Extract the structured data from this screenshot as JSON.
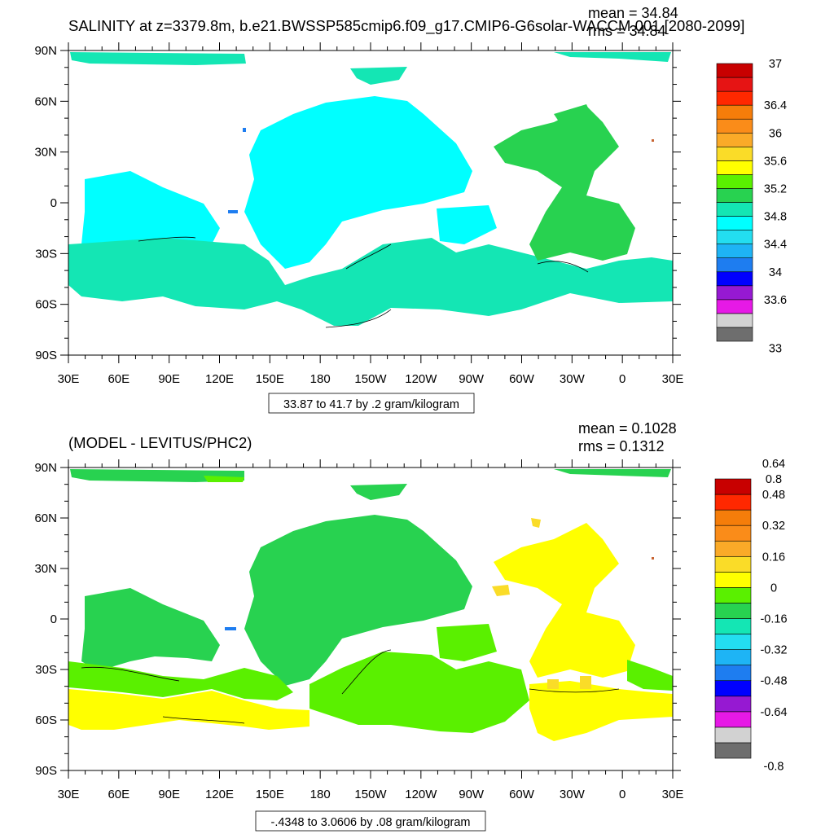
{
  "chart_data": [
    {
      "type": "heatmap",
      "title": "SALINITY at z=3379.8m, b.e21.BWSSP585cmip6.f09_g17.CMIP6-G6solar-WACCM.001 [2080-2099]",
      "stats": {
        "mean": "mean = 34.84",
        "rms": "rms = 34.84"
      },
      "x_ticks": [
        "30E",
        "60E",
        "90E",
        "120E",
        "150E",
        "180",
        "150W",
        "120W",
        "90W",
        "60W",
        "30W",
        "0",
        "30E"
      ],
      "y_ticks": [
        "90N",
        "60N",
        "30N",
        "0",
        "30S",
        "60S",
        "90S"
      ],
      "xlim": [
        30,
        390
      ],
      "ylim": [
        -90,
        90
      ],
      "contour_info": "33.87 to 41.7 by .2 gram/kilogram",
      "colorbar": {
        "colors": [
          "#6e6e6e",
          "#d2d2d2",
          "#e619e6",
          "#9619d2",
          "#0000ff",
          "#1e7df0",
          "#1eb4f5",
          "#23def0",
          "#00ffff",
          "#14e6b4",
          "#28d250",
          "#5af000",
          "#ffff00",
          "#fadc28",
          "#faaa28",
          "#fa8c19",
          "#f57d0a",
          "#ff2800",
          "#e61414",
          "#c80000"
        ],
        "labels": [
          "33",
          "33.6",
          "34",
          "34.4",
          "34.8",
          "35.2",
          "35.6",
          "36",
          "36.4",
          "37"
        ]
      },
      "regions": [
        {
          "name": "arctic-strip",
          "color": "#14e6b4"
        },
        {
          "name": "pacific-north",
          "color": "#00ffff"
        },
        {
          "name": "southern-ocean",
          "color": "#14e6b4"
        },
        {
          "name": "indian-ocean",
          "color": "#00ffff"
        },
        {
          "name": "atlantic",
          "color": "#28d250"
        }
      ]
    },
    {
      "type": "heatmap",
      "title": "(MODEL - LEVITUS/PHC2)",
      "stats": {
        "mean": "mean = 0.1028",
        "rms": "rms = 0.1312"
      },
      "x_ticks": [
        "30E",
        "60E",
        "90E",
        "120E",
        "150E",
        "180",
        "150W",
        "120W",
        "90W",
        "60W",
        "30W",
        "0",
        "30E"
      ],
      "y_ticks": [
        "90N",
        "60N",
        "30N",
        "0",
        "30S",
        "60S",
        "90S"
      ],
      "xlim": [
        30,
        390
      ],
      "ylim": [
        -90,
        90
      ],
      "contour_info": "-.4348 to 3.0606 by .08 gram/kilogram",
      "colorbar": {
        "colors": [
          "#6e6e6e",
          "#d2d2d2",
          "#e619e6",
          "#9619d2",
          "#0000ff",
          "#1e7df0",
          "#1eb4f5",
          "#23def0",
          "#14e6b4",
          "#28d250",
          "#5af000",
          "#ffff00",
          "#fadc28",
          "#faaa28",
          "#fa8c19",
          "#f57d0a",
          "#ff2800",
          "#c80000"
        ],
        "labels": [
          "-0.8",
          "-0.64",
          "-0.48",
          "-0.32",
          "-0.16",
          "0",
          "0.16",
          "0.32",
          "0.48",
          "0.64",
          "0.8"
        ]
      },
      "regions": [
        {
          "name": "pacific-north",
          "color": "#28d250"
        },
        {
          "name": "atlantic",
          "color": "#ffff00"
        },
        {
          "name": "southern-ocean-east",
          "color": "#ffff00"
        },
        {
          "name": "southern-ocean-pacific",
          "color": "#5af000"
        }
      ]
    }
  ]
}
